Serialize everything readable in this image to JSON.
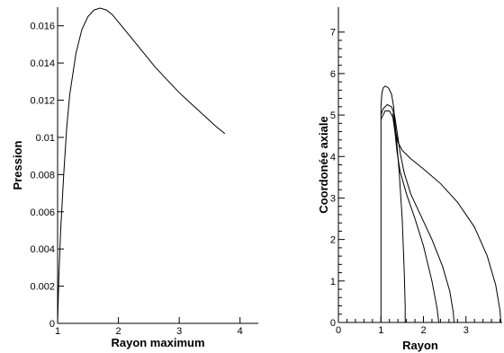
{
  "chart_data": [
    {
      "type": "line",
      "xlabel": "Rayon maximum",
      "ylabel": "Pression",
      "xlim": [
        1,
        4.3
      ],
      "ylim": [
        0,
        0.017
      ],
      "xticks": [
        1,
        2,
        3,
        4
      ],
      "xtick_labels": [
        "1",
        "2",
        "3",
        "4"
      ],
      "yticks": [
        0,
        0.002,
        0.004,
        0.006,
        0.008,
        0.01,
        0.012,
        0.014,
        0.016
      ],
      "ytick_labels": [
        "0",
        "0.002",
        "0.004",
        "0.006",
        "0.008",
        "0.01",
        "0.012",
        "0.014",
        "0.016"
      ],
      "grid": false,
      "series": [
        {
          "x": [
            1.0,
            1.02,
            1.05,
            1.1,
            1.15,
            1.2,
            1.3,
            1.4,
            1.5,
            1.6,
            1.7,
            1.8,
            1.9,
            2.0,
            2.2,
            2.4,
            2.6,
            2.8,
            3.0,
            3.2,
            3.4,
            3.6,
            3.75
          ],
          "y": [
            0.0,
            0.0025,
            0.005,
            0.008,
            0.0105,
            0.0123,
            0.0145,
            0.0158,
            0.0165,
            0.01685,
            0.01695,
            0.01685,
            0.0166,
            0.0162,
            0.0154,
            0.0146,
            0.0138,
            0.0131,
            0.0124,
            0.0118,
            0.0112,
            0.0106,
            0.0102
          ]
        }
      ]
    },
    {
      "type": "line",
      "xlabel": "Rayon",
      "ylabel": "Coordonée axiale",
      "xlim": [
        0,
        4
      ],
      "ylim": [
        0,
        7.6
      ],
      "xticks": [
        0,
        1,
        2,
        3,
        4
      ],
      "xtick_labels": [
        "0",
        "1",
        "2",
        "3",
        "4"
      ],
      "yticks": [
        0,
        1,
        2,
        3,
        4,
        5,
        6,
        7
      ],
      "ytick_labels": [
        "0",
        "1",
        "2",
        "3",
        "4",
        "5",
        "6",
        "7"
      ],
      "grid": false,
      "series": [
        {
          "x": [
            1.0,
            1.0,
            1.0,
            1.0,
            1.02,
            1.05,
            1.1,
            1.18,
            1.25,
            1.3,
            1.32,
            1.35,
            1.4,
            1.5,
            1.7,
            2.0,
            2.4,
            2.8,
            3.2,
            3.5,
            3.7,
            3.8,
            3.82
          ],
          "y": [
            0.0,
            2.0,
            4.5,
            5.2,
            5.5,
            5.65,
            5.7,
            5.65,
            5.5,
            5.2,
            4.9,
            4.6,
            4.35,
            4.15,
            3.95,
            3.7,
            3.35,
            2.9,
            2.3,
            1.6,
            0.9,
            0.3,
            0.0
          ]
        },
        {
          "x": [
            1.0,
            1.05,
            1.15,
            1.25,
            1.32,
            1.38,
            1.45,
            1.55,
            1.7,
            1.95,
            2.2,
            2.45,
            2.62,
            2.7,
            2.72
          ],
          "y": [
            5.0,
            5.15,
            5.25,
            5.2,
            5.0,
            4.6,
            4.1,
            3.6,
            3.1,
            2.55,
            2.0,
            1.35,
            0.75,
            0.25,
            0.0
          ]
        },
        {
          "x": [
            1.0,
            1.1,
            1.2,
            1.28,
            1.33,
            1.38,
            1.45,
            1.6,
            1.8,
            2.0,
            2.2,
            2.32,
            2.36
          ],
          "y": [
            4.9,
            5.1,
            5.1,
            4.95,
            4.6,
            4.1,
            3.65,
            3.1,
            2.5,
            1.85,
            1.0,
            0.35,
            0.0
          ]
        },
        {
          "x": [
            1.28,
            1.36,
            1.43,
            1.5,
            1.55,
            1.57,
            1.57
          ],
          "y": [
            5.05,
            4.5,
            3.6,
            2.5,
            1.2,
            0.4,
            0.0
          ]
        }
      ]
    }
  ]
}
